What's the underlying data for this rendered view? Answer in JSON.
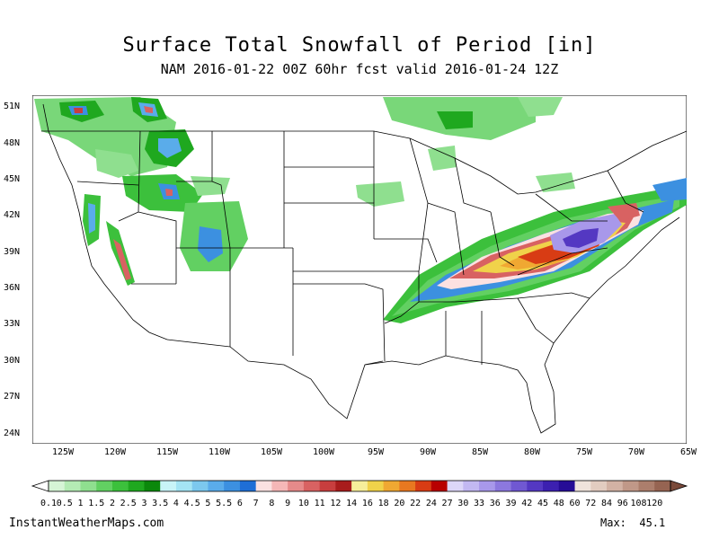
{
  "title": "Surface Total Snowfall of Period [in]",
  "subtitle": "NAM 2016-01-22 00Z 60hr fcst valid 2016-01-24 12Z",
  "lat_labels": [
    "51N",
    "48N",
    "45N",
    "42N",
    "39N",
    "36N",
    "33N",
    "30N",
    "27N",
    "24N"
  ],
  "lon_labels": [
    "125W",
    "120W",
    "115W",
    "110W",
    "105W",
    "100W",
    "95W",
    "90W",
    "85W",
    "80W",
    "75W",
    "70W",
    "65W"
  ],
  "colorbar": {
    "labels": [
      "0.1",
      "0.5",
      "1",
      "1.5",
      "2",
      "2.5",
      "3",
      "3.5",
      "4",
      "4.5",
      "5",
      "5.5",
      "6",
      "7",
      "8",
      "9",
      "10",
      "11",
      "12",
      "14",
      "16",
      "18",
      "20",
      "22",
      "24",
      "27",
      "30",
      "33",
      "36",
      "39",
      "42",
      "45",
      "48",
      "60",
      "72",
      "84",
      "96",
      "108",
      "120"
    ],
    "colors": [
      "#d6f5d6",
      "#b4ebb4",
      "#8fdf8f",
      "#62d062",
      "#3cc03c",
      "#1fa81f",
      "#0b880b",
      "#c8f4f8",
      "#a4e4f4",
      "#7cc8ee",
      "#5aacea",
      "#3c90e0",
      "#1e6ed6",
      "#fbe1e1",
      "#f5b7b7",
      "#e68a8a",
      "#d86262",
      "#c83e3e",
      "#a81c1c",
      "#f6ee9a",
      "#f0d24a",
      "#f0a832",
      "#e87820",
      "#d83c14",
      "#b80000",
      "#dcd6f8",
      "#c2b8f2",
      "#a898ea",
      "#8c78de",
      "#7058d2",
      "#5438c2",
      "#3c20b0",
      "#260c96",
      "#f0e4dc",
      "#e2ccc0",
      "#d2b2a4",
      "#c09888",
      "#ac7e6c",
      "#966452"
    ]
  },
  "footer": {
    "site": "InstantWeatherMaps.com",
    "max_label": "Max:",
    "max_value": "45.1"
  }
}
